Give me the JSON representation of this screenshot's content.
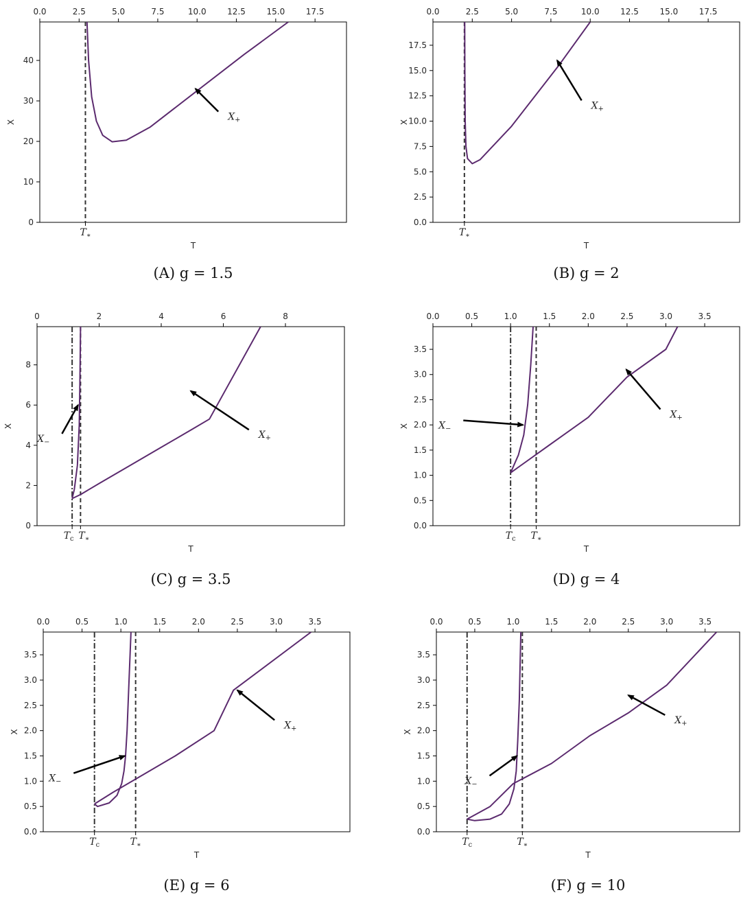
{
  "chart_data": [
    {
      "type": "line",
      "caption": "(A) g = 1.5",
      "xlabel": "T",
      "ylabel": "X",
      "xlim": [
        0,
        19.5
      ],
      "ylim": [
        0,
        49.5
      ],
      "xticks": [
        "0.0",
        "2.5",
        "5.0",
        "7.5",
        "10.0",
        "12.5",
        "15.0",
        "17.5"
      ],
      "xtick_values": [
        0,
        2.5,
        5,
        7.5,
        10,
        12.5,
        15,
        17.5
      ],
      "yticks": [
        "0",
        "10",
        "20",
        "30",
        "40"
      ],
      "ytick_values": [
        0,
        10,
        20,
        30,
        40
      ],
      "vlines": [
        {
          "x": 2.9,
          "style": "dashed",
          "label": "T*"
        }
      ],
      "series": [
        {
          "points": [
            [
              3.0,
              49.5
            ],
            [
              3.1,
              40
            ],
            [
              3.3,
              31
            ],
            [
              3.6,
              25
            ],
            [
              4.0,
              21.5
            ],
            [
              4.6,
              19.9
            ],
            [
              5.5,
              20.3
            ],
            [
              7.0,
              23.5
            ],
            [
              10.0,
              32.5
            ],
            [
              13.0,
              41.5
            ],
            [
              15.8,
              49.5
            ]
          ]
        }
      ],
      "annotations": [
        {
          "text": "X+",
          "arrow_to": [
            9.9,
            33
          ],
          "label_at": [
            11.7,
            26
          ]
        }
      ]
    },
    {
      "type": "line",
      "caption": "(B) g = 2",
      "xlabel": "T",
      "ylabel": "X",
      "xlim": [
        0,
        19.5
      ],
      "ylim": [
        0,
        19.8
      ],
      "xticks": [
        "0.0",
        "2.5",
        "5.0",
        "7.5",
        "10.0",
        "12.5",
        "15.0",
        "17.5"
      ],
      "xtick_values": [
        0,
        2.5,
        5,
        7.5,
        10,
        12.5,
        15,
        17.5
      ],
      "yticks": [
        "0.0",
        "2.5",
        "5.0",
        "7.5",
        "10.0",
        "12.5",
        "15.0",
        "17.5"
      ],
      "ytick_values": [
        0,
        2.5,
        5,
        7.5,
        10,
        12.5,
        15,
        17.5
      ],
      "vlines": [
        {
          "x": 2.0,
          "style": "dashed",
          "label": "T*"
        }
      ],
      "series": [
        {
          "points": [
            [
              2.02,
              19.8
            ],
            [
              2.03,
              15
            ],
            [
              2.05,
              10
            ],
            [
              2.1,
              7.5
            ],
            [
              2.2,
              6.3
            ],
            [
              2.5,
              5.8
            ],
            [
              3.0,
              6.2
            ],
            [
              5.0,
              9.5
            ],
            [
              8.0,
              15.5
            ],
            [
              10.0,
              19.8
            ]
          ]
        }
      ],
      "annotations": [
        {
          "text": "X+",
          "arrow_to": [
            7.9,
            16
          ],
          "label_at": [
            9.8,
            11.5
          ]
        }
      ]
    },
    {
      "type": "line",
      "caption": "(C) g = 3.5",
      "xlabel": "T",
      "ylabel": "X",
      "xlim": [
        0,
        9.9
      ],
      "ylim": [
        0,
        9.9
      ],
      "xticks": [
        "0",
        "2",
        "4",
        "6",
        "8"
      ],
      "xtick_values": [
        0,
        2,
        4,
        6,
        8
      ],
      "yticks": [
        "0",
        "2",
        "4",
        "6",
        "8"
      ],
      "ytick_values": [
        0,
        2,
        4,
        6,
        8
      ],
      "vlines": [
        {
          "x": 1.13,
          "style": "dashdot",
          "label": "Tc"
        },
        {
          "x": 1.4,
          "style": "dashed",
          "label": "T*"
        }
      ],
      "series": [
        {
          "points": [
            [
              1.13,
              1.35
            ],
            [
              1.2,
              1.8
            ],
            [
              1.3,
              3
            ],
            [
              1.36,
              5
            ],
            [
              1.38,
              7
            ],
            [
              1.4,
              9.9
            ]
          ]
        },
        {
          "points": [
            [
              1.13,
              1.35
            ],
            [
              1.4,
              1.55
            ],
            [
              2,
              2.1
            ],
            [
              3,
              3
            ],
            [
              4,
              3.9
            ],
            [
              5,
              4.8
            ],
            [
              5.55,
              5.3
            ],
            [
              7.2,
              9.9
            ]
          ]
        }
      ],
      "annotations": [
        {
          "text": "X-",
          "arrow_to": [
            1.32,
            6.0
          ],
          "label_at": [
            0.45,
            4.3
          ]
        },
        {
          "text": "X+",
          "arrow_to": [
            4.95,
            6.7
          ],
          "label_at": [
            7.0,
            4.5
          ]
        }
      ]
    },
    {
      "type": "line",
      "caption": "(D) g = 4",
      "xlabel": "T",
      "ylabel": "X",
      "xlim": [
        0,
        3.95
      ],
      "ylim": [
        0,
        3.95
      ],
      "xticks": [
        "0.0",
        "0.5",
        "1.0",
        "1.5",
        "2.0",
        "2.5",
        "3.0",
        "3.5"
      ],
      "xtick_values": [
        0,
        0.5,
        1,
        1.5,
        2,
        2.5,
        3,
        3.5
      ],
      "yticks": [
        "0.0",
        "0.5",
        "1.0",
        "1.5",
        "2.0",
        "2.5",
        "3.0",
        "3.5"
      ],
      "ytick_values": [
        0,
        0.5,
        1,
        1.5,
        2,
        2.5,
        3,
        3.5
      ],
      "vlines": [
        {
          "x": 1.0,
          "style": "dashdot",
          "label": "Tc"
        },
        {
          "x": 1.33,
          "style": "dashed",
          "label": "T*"
        }
      ],
      "series": [
        {
          "points": [
            [
              1.0,
              1.05
            ],
            [
              1.1,
              1.4
            ],
            [
              1.17,
              1.8
            ],
            [
              1.22,
              2.4
            ],
            [
              1.26,
              3.2
            ],
            [
              1.29,
              3.95
            ]
          ]
        },
        {
          "points": [
            [
              1.0,
              1.05
            ],
            [
              1.5,
              1.6
            ],
            [
              2.0,
              2.15
            ],
            [
              2.5,
              2.95
            ],
            [
              3.0,
              3.5
            ],
            [
              3.15,
              3.95
            ]
          ]
        }
      ],
      "annotations": [
        {
          "text": "X-",
          "arrow_to": [
            1.16,
            2.0
          ],
          "label_at": [
            0.25,
            1.98
          ]
        },
        {
          "text": "X+",
          "arrow_to": [
            2.49,
            3.1
          ],
          "label_at": [
            3.0,
            2.2
          ]
        }
      ]
    },
    {
      "type": "line",
      "caption": "(E) g = 6",
      "xlabel": "T",
      "ylabel": "X",
      "xlim": [
        0,
        3.95
      ],
      "ylim": [
        0,
        3.95
      ],
      "xticks": [
        "0.0",
        "0.5",
        "1.0",
        "1.5",
        "2.0",
        "2.5",
        "3.0",
        "3.5"
      ],
      "xtick_values": [
        0,
        0.5,
        1,
        1.5,
        2,
        2.5,
        3,
        3.5
      ],
      "yticks": [
        "0.0",
        "0.5",
        "1.0",
        "1.5",
        "2.0",
        "2.5",
        "3.0",
        "3.5"
      ],
      "ytick_values": [
        0,
        0.5,
        1,
        1.5,
        2,
        2.5,
        3,
        3.5
      ],
      "vlines": [
        {
          "x": 0.66,
          "style": "dashdot",
          "label": "Tc"
        },
        {
          "x": 1.19,
          "style": "dashed",
          "label": "T*"
        }
      ],
      "series": [
        {
          "points": [
            [
              0.66,
              0.55
            ],
            [
              0.7,
              0.5
            ],
            [
              0.85,
              0.57
            ],
            [
              0.95,
              0.72
            ],
            [
              1.01,
              0.95
            ],
            [
              1.04,
              1.2
            ],
            [
              1.06,
              1.5
            ],
            [
              1.08,
              2.0
            ],
            [
              1.1,
              2.8
            ],
            [
              1.13,
              3.95
            ]
          ]
        },
        {
          "points": [
            [
              0.66,
              0.55
            ],
            [
              0.9,
              0.78
            ],
            [
              1.2,
              1.05
            ],
            [
              1.7,
              1.5
            ],
            [
              2.2,
              2.0
            ],
            [
              2.45,
              2.8
            ],
            [
              3.45,
              3.95
            ]
          ]
        }
      ],
      "annotations": [
        {
          "text": "X-",
          "arrow_to": [
            1.05,
            1.5
          ],
          "label_at": [
            0.25,
            1.05
          ]
        },
        {
          "text": "X+",
          "arrow_to": [
            2.5,
            2.8
          ],
          "label_at": [
            3.05,
            2.1
          ]
        }
      ]
    },
    {
      "type": "line",
      "caption": "(F) g = 10",
      "xlabel": "T",
      "ylabel": "X",
      "xlim": [
        0,
        3.95
      ],
      "ylim": [
        0,
        3.95
      ],
      "xticks": [
        "0.0",
        "0.5",
        "1.0",
        "1.5",
        "2.0",
        "2.5",
        "3.0",
        "3.5"
      ],
      "xtick_values": [
        0,
        0.5,
        1,
        1.5,
        2,
        2.5,
        3,
        3.5
      ],
      "yticks": [
        "0.0",
        "0.5",
        "1.0",
        "1.5",
        "2.0",
        "2.5",
        "3.0",
        "3.5"
      ],
      "ytick_values": [
        0,
        0.5,
        1,
        1.5,
        2,
        2.5,
        3,
        3.5
      ],
      "vlines": [
        {
          "x": 0.4,
          "style": "dashdot",
          "label": "Tc"
        },
        {
          "x": 1.12,
          "style": "dashed",
          "label": "T*"
        }
      ],
      "series": [
        {
          "points": [
            [
              0.4,
              0.25
            ],
            [
              0.5,
              0.22
            ],
            [
              0.7,
              0.25
            ],
            [
              0.85,
              0.35
            ],
            [
              0.95,
              0.55
            ],
            [
              1.01,
              0.85
            ],
            [
              1.04,
              1.2
            ],
            [
              1.06,
              1.8
            ],
            [
              1.08,
              2.6
            ],
            [
              1.1,
              3.95
            ]
          ]
        },
        {
          "points": [
            [
              0.4,
              0.25
            ],
            [
              0.7,
              0.5
            ],
            [
              1.0,
              0.95
            ],
            [
              1.5,
              1.35
            ],
            [
              2.0,
              1.9
            ],
            [
              2.5,
              2.35
            ],
            [
              3.0,
              2.9
            ],
            [
              3.65,
              3.95
            ]
          ]
        }
      ],
      "annotations": [
        {
          "text": "X-",
          "arrow_to": [
            1.05,
            1.5
          ],
          "label_at": [
            0.55,
            1.0
          ]
        },
        {
          "text": "X+",
          "arrow_to": [
            2.5,
            2.7
          ],
          "label_at": [
            3.05,
            2.2
          ]
        }
      ]
    }
  ]
}
